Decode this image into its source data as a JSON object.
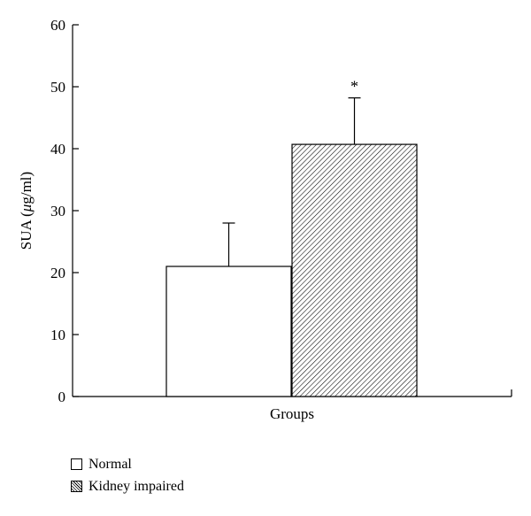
{
  "chart_data": {
    "type": "bar",
    "title": "",
    "xlabel": "Groups",
    "ylabel_prefix": "SUA (",
    "ylabel_mu": "μ",
    "ylabel_suffix": "g/ml)",
    "ylim": [
      0,
      60
    ],
    "yticks": [
      "0",
      "10",
      "20",
      "30",
      "40",
      "50",
      "60"
    ],
    "categories": [
      "Normal",
      "Kidney impaired"
    ],
    "values": [
      21,
      40.7
    ],
    "errors": [
      7,
      7.5
    ],
    "fills": [
      "plain",
      "hatched"
    ],
    "annotations": [
      "",
      "*"
    ],
    "grid": false,
    "legend_position": "bottom-left"
  },
  "legend": {
    "items": [
      {
        "label": "Normal",
        "fill": "plain"
      },
      {
        "label": "Kidney impaired",
        "fill": "hatched"
      }
    ]
  }
}
